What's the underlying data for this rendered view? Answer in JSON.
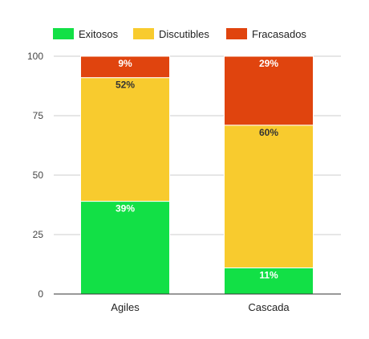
{
  "chart_data": {
    "type": "bar",
    "stacked": true,
    "categories": [
      "Agiles",
      "Cascada"
    ],
    "series": [
      {
        "name": "Exitosos",
        "color": "#12e046",
        "label_color": "#ffffff",
        "values": [
          39,
          11
        ],
        "labels": [
          "39%",
          "11%"
        ]
      },
      {
        "name": "Discutibles",
        "color": "#f8cb2e",
        "label_color": "#333333",
        "values": [
          52,
          60
        ],
        "labels": [
          "52%",
          "60%"
        ]
      },
      {
        "name": "Fracasados",
        "color": "#e0440e",
        "label_color": "#ffffff",
        "values": [
          9,
          29
        ],
        "labels": [
          "9%",
          "29%"
        ]
      }
    ],
    "ylim": [
      0,
      100
    ],
    "yticks": [
      "0",
      "25",
      "50",
      "75",
      "100"
    ],
    "grid": true,
    "legend_position": "top-left",
    "title": "",
    "xlabel": "",
    "ylabel": ""
  }
}
